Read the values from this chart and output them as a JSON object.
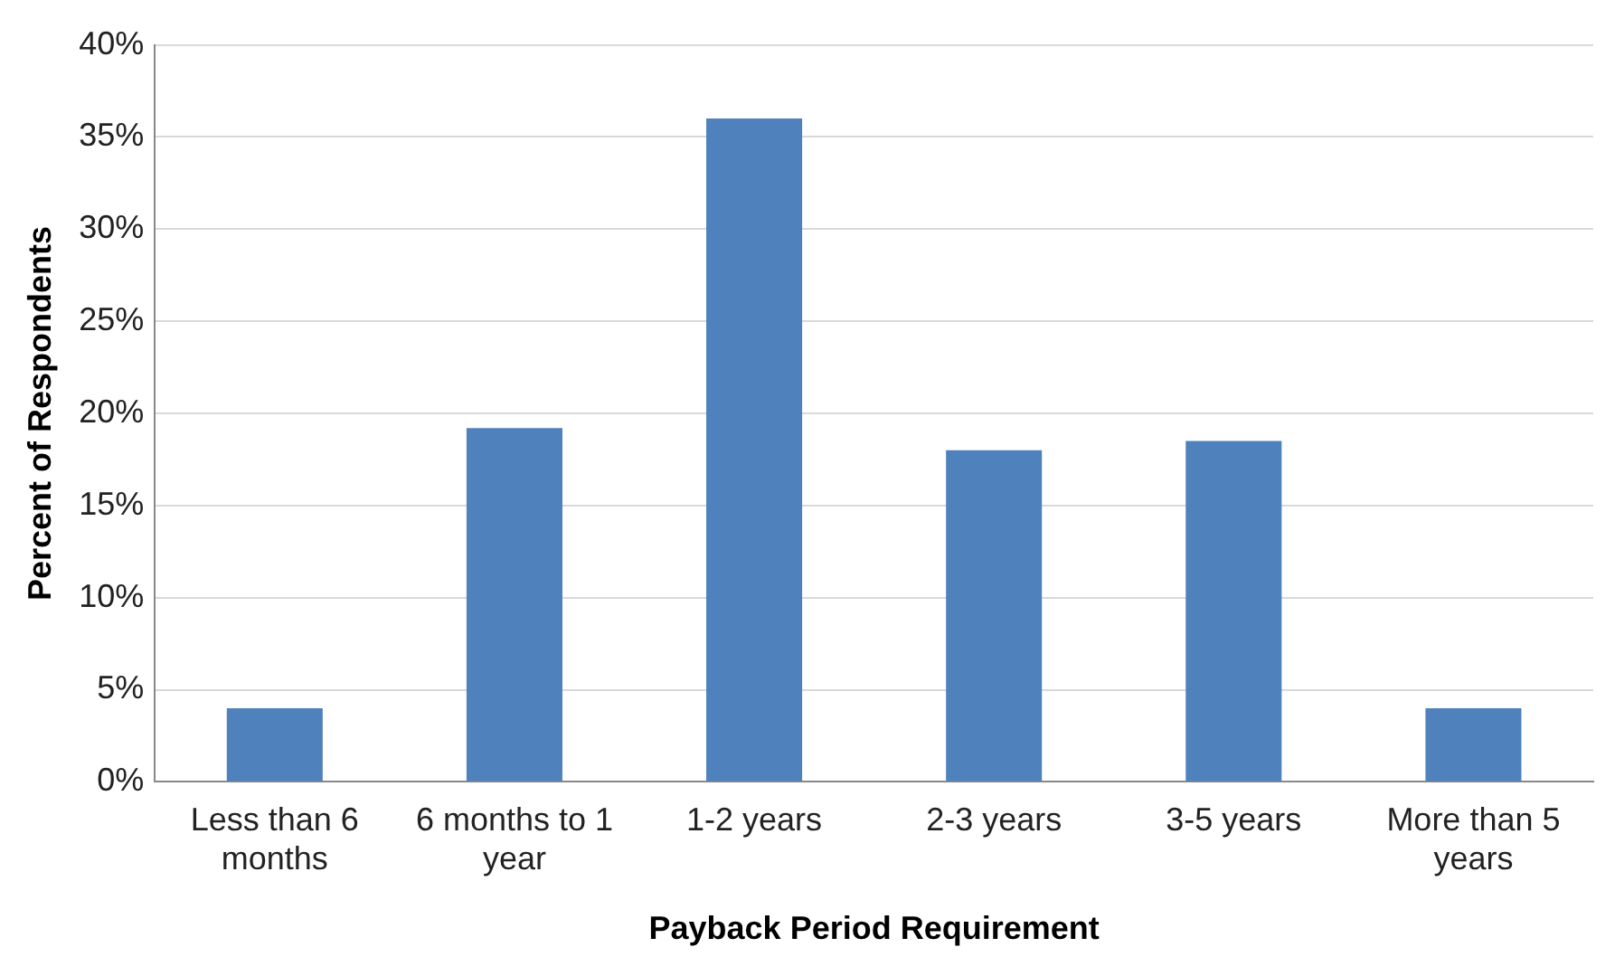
{
  "chart_data": {
    "type": "bar",
    "xlabel": "Payback Period Requirement",
    "ylabel": "Percent of Respondents",
    "categories": [
      "Less than 6 months",
      "6 months to 1 year",
      "1-2 years",
      "2-3 years",
      "3-5 years",
      "More than 5 years"
    ],
    "values": [
      4,
      19.2,
      36,
      18,
      18.5,
      4
    ],
    "color": "#4f81bd",
    "ylim": [
      0,
      40
    ],
    "yticks": [
      {
        "value": 0,
        "label": "0%"
      },
      {
        "value": 5,
        "label": "5%"
      },
      {
        "value": 10,
        "label": "10%"
      },
      {
        "value": 15,
        "label": "15%"
      },
      {
        "value": 20,
        "label": "20%"
      },
      {
        "value": 25,
        "label": "25%"
      },
      {
        "value": 30,
        "label": "30%"
      },
      {
        "value": 35,
        "label": "35%"
      },
      {
        "value": 40,
        "label": "40%"
      }
    ],
    "grid": "y",
    "legend": false
  }
}
